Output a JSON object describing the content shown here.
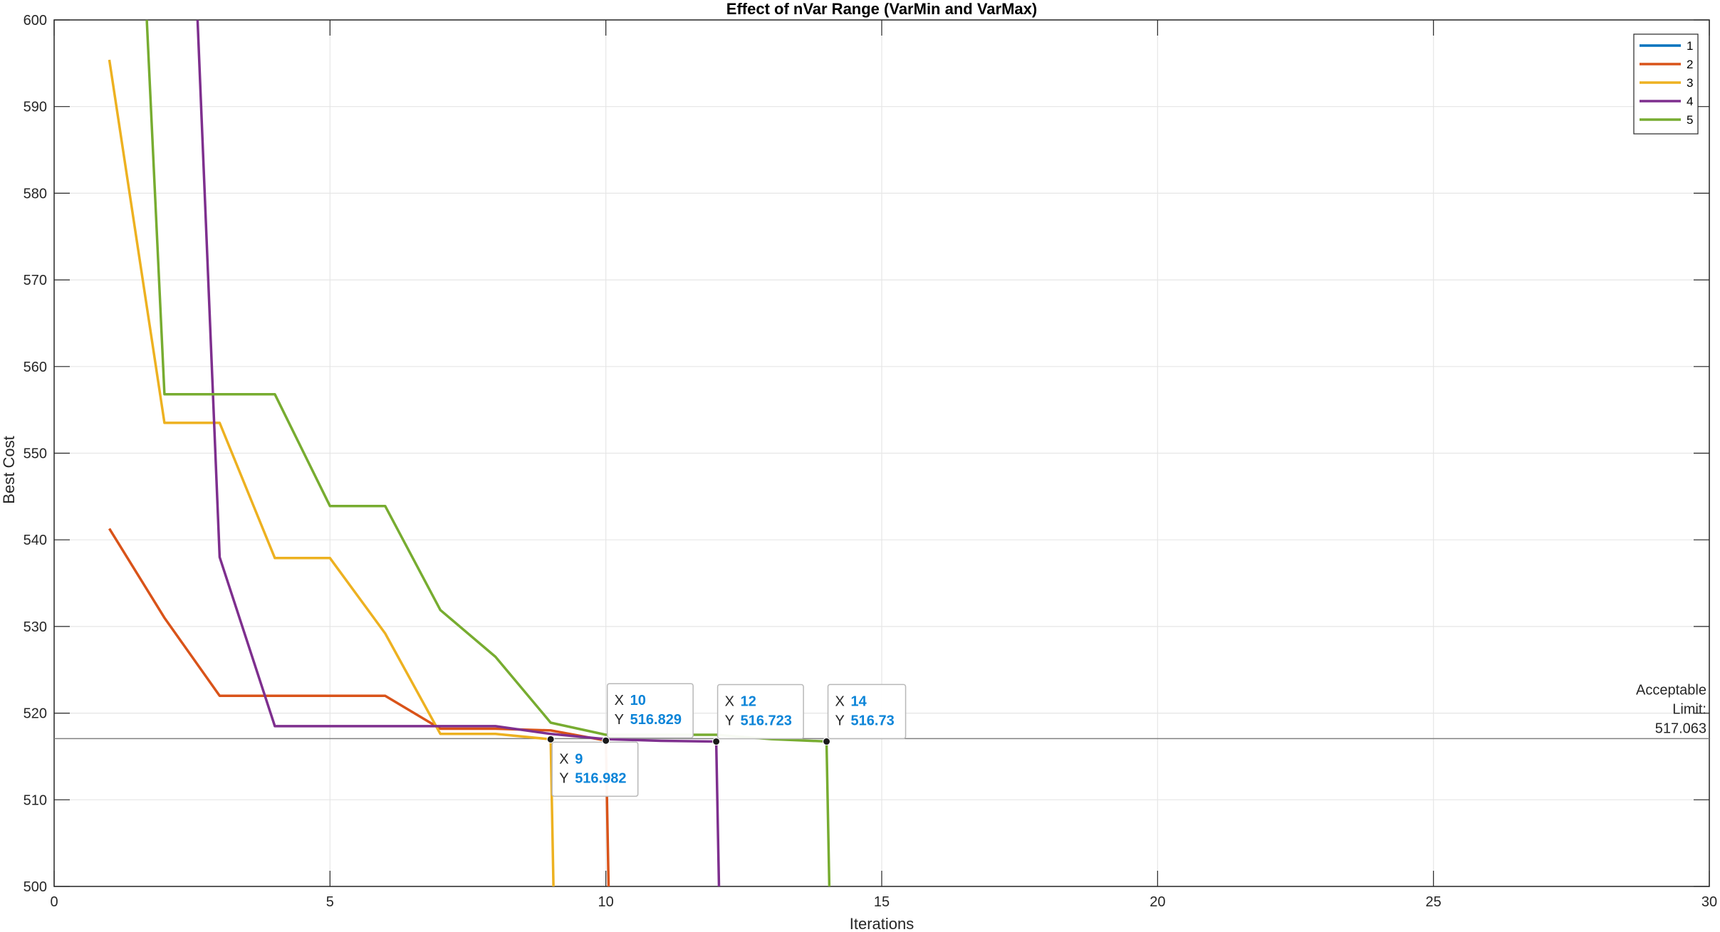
{
  "chart_data": {
    "type": "line",
    "title": "Effect of nVar Range (VarMin and VarMax)",
    "xlabel": "Iterations",
    "ylabel": "Best Cost",
    "xlim": [
      0,
      30
    ],
    "ylim": [
      500,
      600
    ],
    "xticks": [
      "0",
      "5",
      "10",
      "15",
      "20",
      "25",
      "30"
    ],
    "yticks": [
      "500",
      "510",
      "520",
      "530",
      "540",
      "550",
      "560",
      "570",
      "580",
      "590",
      "600"
    ],
    "grid": true,
    "legend_position": "top-right",
    "series": [
      {
        "name": "1",
        "color": "#0072BD",
        "x": [],
        "y": []
      },
      {
        "name": "2",
        "color": "#D95319",
        "x": [
          1,
          2,
          3,
          4,
          5,
          6,
          7,
          8,
          9,
          10,
          10.05
        ],
        "y": [
          541.3,
          531.0,
          522.0,
          522.0,
          522.0,
          522.0,
          518.2,
          518.2,
          518.0,
          516.829,
          500
        ]
      },
      {
        "name": "3",
        "color": "#EDB120",
        "x": [
          1,
          2,
          3,
          4,
          5,
          6,
          7,
          8,
          9,
          9.05
        ],
        "y": [
          595.4,
          553.5,
          553.5,
          537.9,
          537.9,
          529.2,
          517.6,
          517.6,
          516.982,
          500
        ]
      },
      {
        "name": "4",
        "color": "#7E2F8E",
        "x": [
          2.6,
          3,
          4,
          5,
          6,
          7,
          8,
          9,
          10,
          11,
          12,
          12.05
        ],
        "y": [
          600,
          538.0,
          518.5,
          518.5,
          518.5,
          518.5,
          518.5,
          517.6,
          517.0,
          516.8,
          516.723,
          500
        ]
      },
      {
        "name": "5",
        "color": "#77AC30",
        "x": [
          1.68,
          2,
          3,
          4,
          5,
          6,
          7,
          8,
          9,
          10,
          11,
          12,
          13,
          14,
          14.05
        ],
        "y": [
          600,
          556.8,
          556.8,
          556.8,
          543.9,
          543.9,
          531.9,
          526.5,
          518.9,
          517.5,
          517.5,
          517.5,
          517.0,
          516.73,
          500
        ]
      }
    ],
    "reference_line": {
      "y": 517.063,
      "label_lines": [
        "Acceptable",
        "Limit:",
        "517.063"
      ],
      "color": "#808080"
    },
    "datatips": [
      {
        "x": 9,
        "y": 516.982,
        "x_text": "9",
        "y_text": "516.982",
        "placement": "below"
      },
      {
        "x": 10,
        "y": 516.829,
        "x_text": "10",
        "y_text": "516.829",
        "placement": "above"
      },
      {
        "x": 12,
        "y": 516.723,
        "x_text": "12",
        "y_text": "516.723",
        "placement": "above"
      },
      {
        "x": 14,
        "y": 516.73,
        "x_text": "14",
        "y_text": "516.73",
        "placement": "above"
      }
    ],
    "datatip_keys": {
      "x": "X",
      "y": "Y"
    }
  }
}
